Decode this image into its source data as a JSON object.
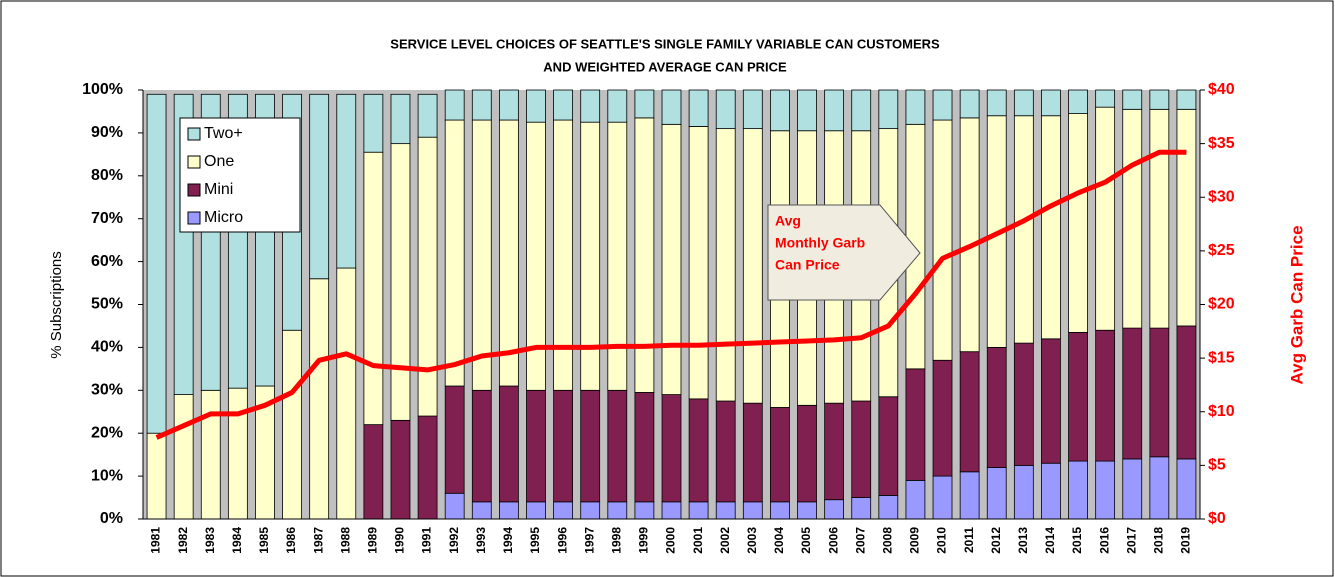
{
  "chart_data": {
    "type": "stacked-bar-line",
    "title": [
      "SERVICE LEVEL CHOICES OF SEATTLE'S SINGLE FAMILY VARIABLE CAN  CUSTOMERS",
      "AND WEIGHTED AVERAGE CAN PRICE"
    ],
    "y_label": "% Subscriptions",
    "y2_label": "Avg Garb Can Price",
    "annotation": [
      "Avg",
      "Monthly  Garb",
      "Can Price"
    ],
    "legend": "upper left",
    "categories": [
      "1981",
      "1982",
      "1983",
      "1984",
      "1985",
      "1986",
      "1987",
      "1988",
      "1989",
      "1990",
      "1991",
      "1992",
      "1993",
      "1994",
      "1995",
      "1996",
      "1997",
      "1998",
      "1999",
      "2000",
      "2001",
      "2002",
      "2003",
      "2004",
      "2005",
      "2006",
      "2007",
      "2008",
      "2009",
      "2010",
      "2011",
      "2012",
      "2013",
      "2014",
      "2015",
      "2016",
      "2017",
      "2018",
      "2019"
    ],
    "series": [
      {
        "name": "Micro",
        "color": "#9999ff",
        "values": [
          0,
          0,
          0,
          0,
          0,
          0,
          0,
          0,
          0,
          0,
          0,
          6,
          4,
          4,
          4,
          4,
          4,
          4,
          4,
          4,
          4,
          4,
          4,
          4,
          4,
          4.5,
          5,
          5.5,
          9,
          10,
          11,
          12,
          12.5,
          13,
          13.5,
          13.5,
          14,
          14.5,
          14
        ]
      },
      {
        "name": "Mini",
        "color": "#802050",
        "values": [
          0,
          0,
          0,
          0,
          0,
          0,
          0,
          0,
          22,
          23,
          24,
          25,
          26,
          27,
          26,
          26,
          26,
          26,
          25.5,
          25,
          24,
          23.5,
          23,
          22,
          22.5,
          22.5,
          22.5,
          23,
          26,
          27,
          28,
          28,
          28.5,
          29,
          30,
          30.5,
          30.5,
          30,
          31
        ]
      },
      {
        "name": "One",
        "color": "#ffffcc",
        "values": [
          20,
          29,
          30,
          30.5,
          31,
          44,
          56,
          58.5,
          63.5,
          64.5,
          65,
          62,
          63,
          62,
          62.5,
          63,
          62.5,
          62.5,
          64,
          63,
          63.5,
          63.5,
          64,
          64.5,
          64,
          63.5,
          63,
          62.5,
          57,
          56,
          54.5,
          54,
          53,
          52,
          51,
          52,
          51,
          51,
          50.5
        ]
      },
      {
        "name": "Two+",
        "color": "#b0e0e0",
        "values": [
          79,
          70,
          69,
          68.5,
          68,
          55,
          43,
          40.5,
          13.5,
          11.5,
          10,
          7,
          7,
          7,
          7.5,
          7,
          7.5,
          7.5,
          6.5,
          8,
          8.5,
          9,
          9,
          9.5,
          9.5,
          9.5,
          9.5,
          9,
          8,
          7,
          6.5,
          6,
          6,
          6,
          5.5,
          4,
          4.5,
          4.5,
          4.5
        ]
      },
      {
        "name": "Avg Garb Can Price",
        "color": "#ff0000",
        "axis": "y2",
        "values": [
          7.6,
          8.7,
          9.8,
          9.8,
          10.6,
          11.8,
          14.8,
          15.4,
          14.3,
          14.1,
          13.9,
          14.4,
          15.2,
          15.5,
          16.0,
          16.0,
          16.0,
          16.1,
          16.1,
          16.2,
          16.2,
          16.3,
          16.4,
          16.5,
          16.6,
          16.7,
          16.9,
          18.0,
          21.0,
          24.3,
          25.4,
          26.6,
          27.8,
          29.2,
          30.4,
          31.4,
          33.0,
          34.2,
          34.2
        ]
      }
    ],
    "ylim": [
      0,
      100
    ],
    "yticks": [
      {
        "value": 0,
        "label": "0%"
      },
      {
        "value": 10,
        "label": "10%"
      },
      {
        "value": 20,
        "label": "20%"
      },
      {
        "value": 30,
        "label": "30%"
      },
      {
        "value": 40,
        "label": "40%"
      },
      {
        "value": 50,
        "label": "50%"
      },
      {
        "value": 60,
        "label": "60%"
      },
      {
        "value": 70,
        "label": "70%"
      },
      {
        "value": 80,
        "label": "80%"
      },
      {
        "value": 90,
        "label": "90%"
      },
      {
        "value": 100,
        "label": "100%"
      }
    ],
    "y2lim": [
      0,
      40
    ],
    "y2ticks": [
      {
        "value": 0,
        "label": "$0"
      },
      {
        "value": 5,
        "label": "$5"
      },
      {
        "value": 10,
        "label": "$10"
      },
      {
        "value": 15,
        "label": "$15"
      },
      {
        "value": 20,
        "label": "$20"
      },
      {
        "value": 25,
        "label": "$25"
      },
      {
        "value": 30,
        "label": "$30"
      },
      {
        "value": 35,
        "label": "$35"
      },
      {
        "value": 40,
        "label": "$40"
      }
    ]
  }
}
